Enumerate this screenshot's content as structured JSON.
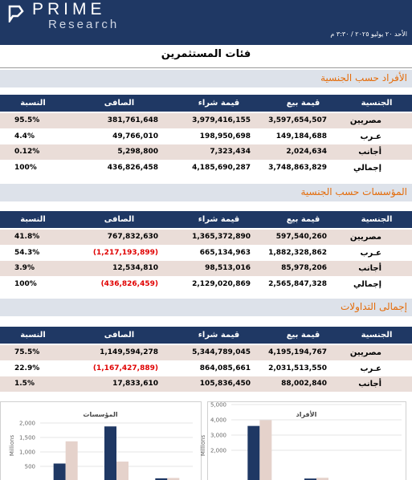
{
  "header": {
    "logo": "PRIME",
    "logo_sub": "Research",
    "date": "الأحد ٢٠ يوليو ٢٠٢٥ / ٣:٣٠ م"
  },
  "title": "فئات المستثمرين",
  "sections": [
    {
      "title": "الأفراد حسب الجنسية",
      "columns": [
        "الجنسية",
        "قيمة بيع",
        "قيمة شراء",
        "الصافى",
        "النسبة"
      ],
      "rows": [
        [
          "مصريين",
          "3,597,654,507",
          "3,979,416,155",
          "381,761,648",
          "95.5%"
        ],
        [
          "عـرب",
          "149,184,688",
          "198,950,698",
          "49,766,010",
          "4.4%"
        ],
        [
          "أجانب",
          "2,024,634",
          "7,323,434",
          "5,298,800",
          "0.12%"
        ],
        [
          "إجمالي",
          "3,748,863,829",
          "4,185,690,287",
          "436,826,458",
          "100%"
        ]
      ]
    },
    {
      "title": "المؤسسات حسب الجنسية",
      "columns": [
        "الجنسية",
        "قيمة بيع",
        "قيمة شراء",
        "الصافى",
        "النسبة"
      ],
      "rows": [
        [
          "مصريين",
          "597,540,260",
          "1,365,372,890",
          "767,832,630",
          "41.8%"
        ],
        [
          "عـرب",
          "1,882,328,862",
          "665,134,963",
          "(1,217,193,899)",
          "54.3%"
        ],
        [
          "أجانب",
          "85,978,206",
          "98,513,016",
          "12,534,810",
          "3.9%"
        ],
        [
          "إجمالي",
          "2,565,847,328",
          "2,129,020,869",
          "(436,826,459)",
          "100%"
        ]
      ]
    },
    {
      "title": "إجمالى التداولات",
      "columns": [
        "الجنسية",
        "قيمة بيع",
        "قيمة شراء",
        "الصافى",
        "النسبة"
      ],
      "rows": [
        [
          "مصريين",
          "4,195,194,767",
          "5,344,789,045",
          "1,149,594,278",
          "75.5%"
        ],
        [
          "عـرب",
          "2,031,513,550",
          "864,085,661",
          "(1,167,427,889)",
          "22.9%"
        ],
        [
          "أجانب",
          "88,002,840",
          "105,836,450",
          "17,833,610",
          "1.5%"
        ]
      ]
    }
  ],
  "chart_data": [
    {
      "type": "bar",
      "title": "المؤسسات",
      "y_label": "Millions",
      "ylim": [
        0,
        2000
      ],
      "yticks": [
        {
          "value": 2000,
          "label": "2,000"
        },
        {
          "value": 1500,
          "label": "1,500"
        },
        {
          "value": 1000,
          "label": "1,000"
        },
        500
      ],
      "series": [
        {
          "color": "#1f3864",
          "values": [
            597.54,
            1882.33,
            85.98
          ]
        },
        {
          "color": "#e5d2cb",
          "values": [
            1365.37,
            665.13,
            98.51
          ]
        }
      ]
    },
    {
      "type": "bar",
      "title": "الأفراد",
      "y_label": "Millions",
      "ylim": [
        0,
        5000
      ],
      "yticks": [
        {
          "value": 5000,
          "label": "5,000"
        },
        {
          "value": 4000,
          "label": "4,000"
        },
        {
          "value": 3000,
          "label": "3,000"
        },
        {
          "value": 2000,
          "label": "2,000"
        }
      ],
      "series": [
        {
          "color": "#1f3864",
          "values": [
            3597.65,
            149.18,
            2.02
          ]
        },
        {
          "color": "#e5d2cb",
          "values": [
            3979.42,
            198.95,
            7.32
          ]
        }
      ]
    }
  ]
}
